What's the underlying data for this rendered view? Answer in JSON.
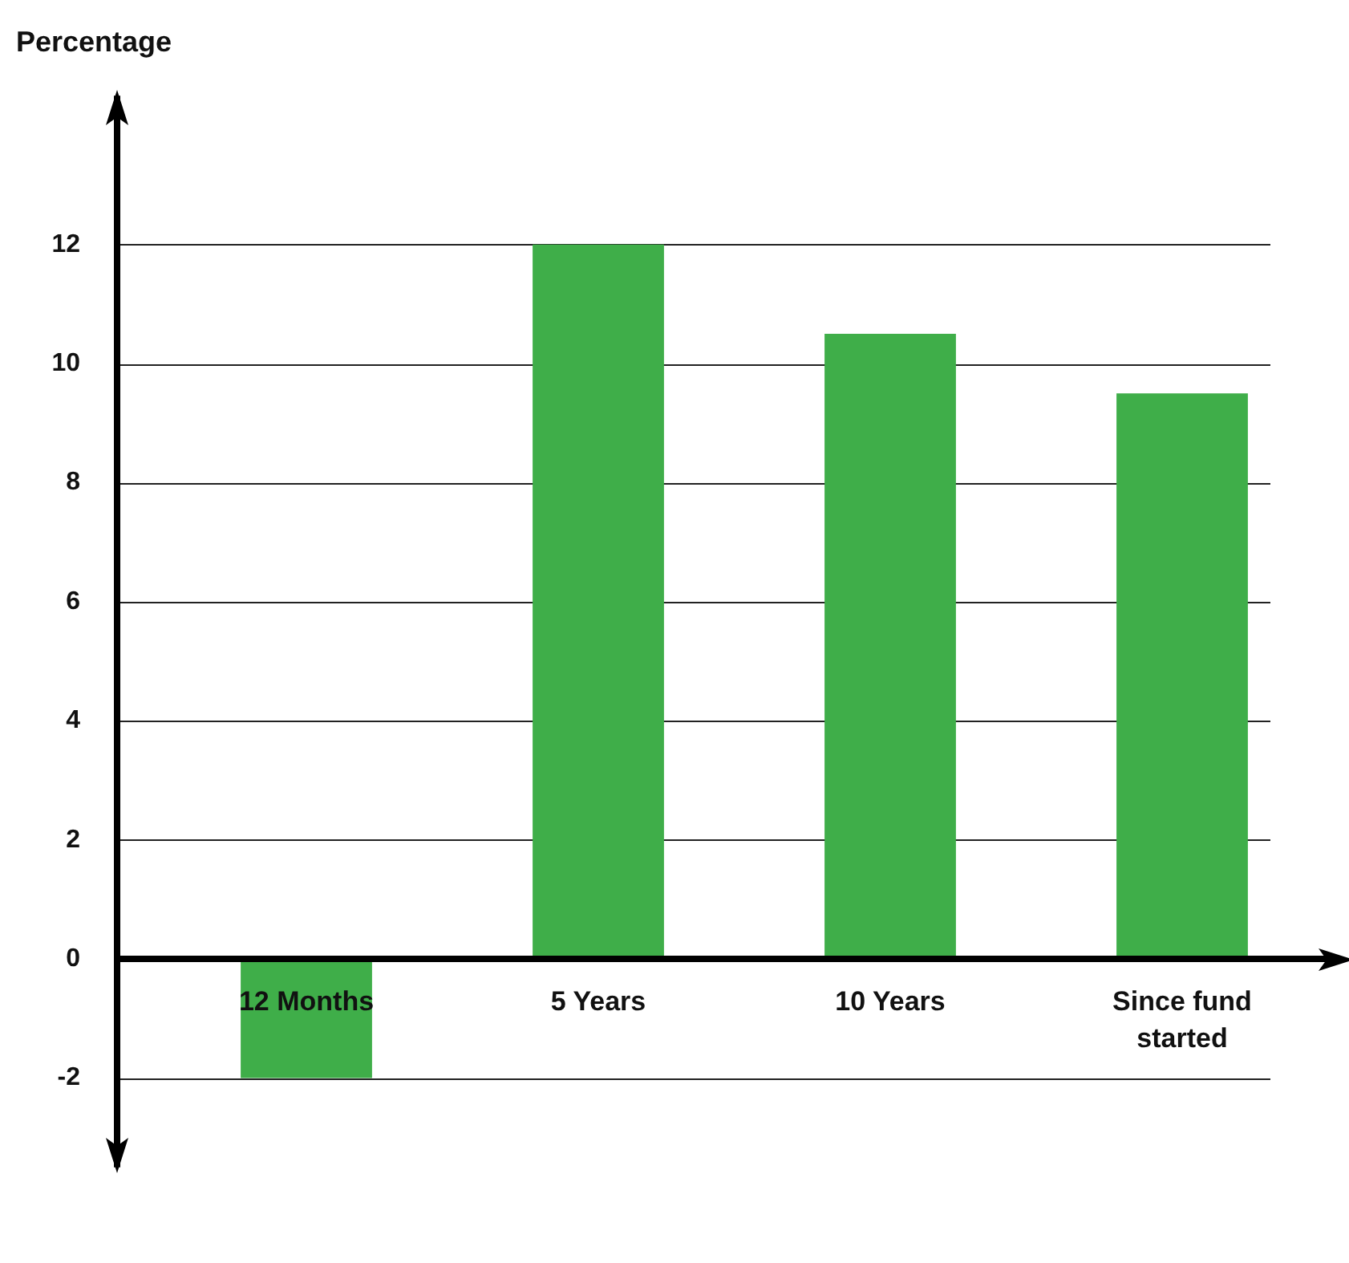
{
  "chart_data": {
    "type": "bar",
    "ylabel": "Percentage",
    "categories": [
      "12 Months",
      "5 Years",
      "10 Years",
      "Since fund started"
    ],
    "values": [
      -2,
      12,
      10.5,
      9.5
    ],
    "color": "#3fae49",
    "ylim": [
      -3.5,
      14.5
    ],
    "yticks": [
      -2,
      0,
      2,
      4,
      6,
      8,
      10,
      12
    ],
    "grid": "y",
    "legend": false
  }
}
